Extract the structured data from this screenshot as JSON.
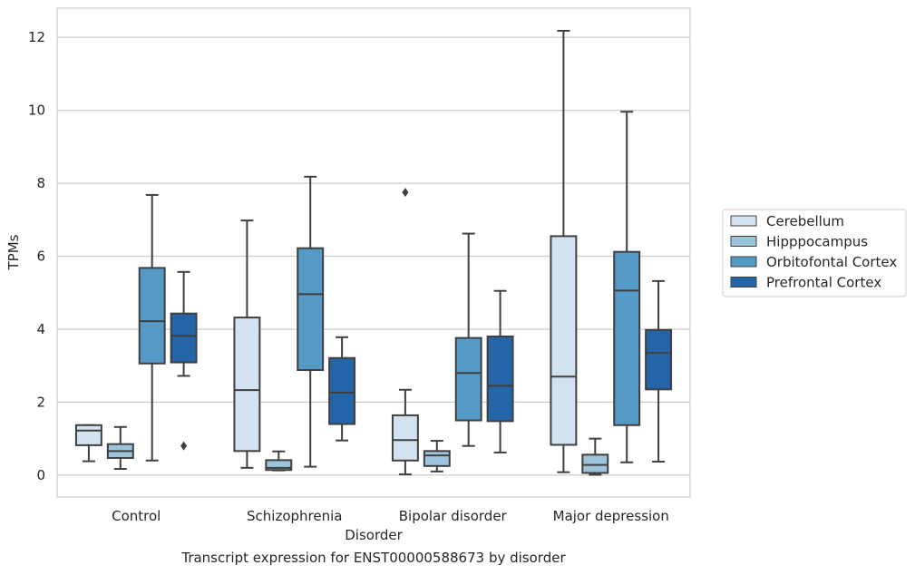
{
  "caption": "Transcript expression for ENST00000588673 by disorder",
  "chart_data": {
    "type": "box",
    "xlabel": "Disorder",
    "ylabel": "TPMs",
    "categories": [
      "Control",
      "Schizophrenia",
      "Bipolar disorder",
      "Major depression"
    ],
    "ylim": [
      -0.6,
      12.8
    ],
    "yticks": [
      0,
      2,
      4,
      6,
      8,
      10,
      12
    ],
    "grid": true,
    "legend_position": "right",
    "series": [
      {
        "name": "Cerebellum",
        "color": "#d3e2f0",
        "boxes": [
          {
            "whislo": 0.38,
            "q1": 0.82,
            "med": 1.22,
            "q3": 1.37,
            "whishi": 1.37,
            "fliers": []
          },
          {
            "whislo": 0.2,
            "q1": 0.66,
            "med": 2.33,
            "q3": 4.32,
            "whishi": 6.98,
            "fliers": []
          },
          {
            "whislo": 0.02,
            "q1": 0.4,
            "med": 0.96,
            "q3": 1.64,
            "whishi": 2.34,
            "fliers": [
              7.75
            ]
          },
          {
            "whislo": 0.08,
            "q1": 0.83,
            "med": 2.7,
            "q3": 6.55,
            "whishi": 12.18,
            "fliers": []
          }
        ]
      },
      {
        "name": "Hipppocampus",
        "color": "#9cc4dd",
        "boxes": [
          {
            "whislo": 0.17,
            "q1": 0.47,
            "med": 0.66,
            "q3": 0.85,
            "whishi": 1.32,
            "fliers": []
          },
          {
            "whislo": 0.13,
            "q1": 0.14,
            "med": 0.2,
            "q3": 0.41,
            "whishi": 0.65,
            "fliers": []
          },
          {
            "whislo": 0.1,
            "q1": 0.25,
            "med": 0.54,
            "q3": 0.66,
            "whishi": 0.94,
            "fliers": []
          },
          {
            "whislo": 0.01,
            "q1": 0.06,
            "med": 0.28,
            "q3": 0.56,
            "whishi": 1.0,
            "fliers": []
          }
        ]
      },
      {
        "name": "Orbitofontal Cortex",
        "color": "#5599c6",
        "boxes": [
          {
            "whislo": 0.4,
            "q1": 3.06,
            "med": 4.22,
            "q3": 5.68,
            "whishi": 7.68,
            "fliers": []
          },
          {
            "whislo": 0.23,
            "q1": 2.88,
            "med": 4.96,
            "q3": 6.22,
            "whishi": 8.18,
            "fliers": []
          },
          {
            "whislo": 0.8,
            "q1": 1.5,
            "med": 2.8,
            "q3": 3.76,
            "whishi": 6.62,
            "fliers": []
          },
          {
            "whislo": 0.35,
            "q1": 1.37,
            "med": 5.06,
            "q3": 6.12,
            "whishi": 9.96,
            "fliers": []
          }
        ]
      },
      {
        "name": "Prefrontal Cortex",
        "color": "#2465a7",
        "boxes": [
          {
            "whislo": 2.72,
            "q1": 3.09,
            "med": 3.82,
            "q3": 4.43,
            "whishi": 5.57,
            "fliers": [
              0.8
            ]
          },
          {
            "whislo": 0.95,
            "q1": 1.4,
            "med": 2.26,
            "q3": 3.21,
            "whishi": 3.78,
            "fliers": []
          },
          {
            "whislo": 0.62,
            "q1": 1.48,
            "med": 2.45,
            "q3": 3.8,
            "whishi": 5.05,
            "fliers": []
          },
          {
            "whislo": 0.37,
            "q1": 2.35,
            "med": 3.35,
            "q3": 3.98,
            "whishi": 5.32,
            "fliers": []
          }
        ]
      }
    ]
  }
}
